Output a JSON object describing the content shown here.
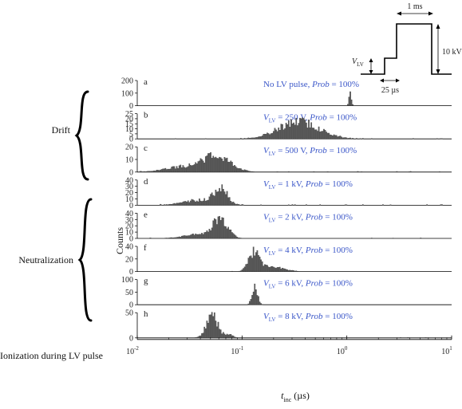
{
  "chart_data": {
    "type": "bar",
    "xlabel_main": "t",
    "xlabel_sub": "inc",
    "xlabel_unit": "(µs)",
    "ylabel": "Counts",
    "x_scale": "log",
    "xlim": [
      0.01,
      10
    ],
    "x_ticks": [
      {
        "value": 0.01,
        "base": "10",
        "exp": "-2"
      },
      {
        "value": 0.1,
        "base": "10",
        "exp": "-1"
      },
      {
        "value": 1,
        "base": "10",
        "exp": "0"
      },
      {
        "value": 10,
        "base": "10",
        "exp": "1"
      }
    ],
    "groups": [
      {
        "label": "Drift",
        "panels": [
          "a",
          "b",
          "c"
        ]
      },
      {
        "label": "Neutralization",
        "panels": [
          "d",
          "e",
          "f",
          "g"
        ]
      },
      {
        "label": "Ionization during LV pulse",
        "panels": [
          "h"
        ]
      }
    ],
    "panels": [
      {
        "letter": "a",
        "ylim": [
          0,
          200
        ],
        "yticks": [
          "0",
          "100",
          "200"
        ],
        "annotation": {
          "prefix": "No LV pulse, ",
          "v": "",
          "sub": "",
          "value": "",
          "prob_label": "Prob",
          "prob_value": " = 100%"
        },
        "peaks": [
          {
            "x": 1.08,
            "width": 0.012,
            "height": 110,
            "n": 60
          }
        ],
        "background": 0.5
      },
      {
        "letter": "b",
        "ylim": [
          0,
          25
        ],
        "yticks": [
          "0",
          "5",
          "10",
          "15",
          "20",
          "25"
        ],
        "annotation": {
          "prefix": "",
          "v": "V",
          "sub": "LV",
          "value": " = 250 V, ",
          "prob_label": "Prob",
          "prob_value": " = 100%"
        },
        "peaks": [
          {
            "x": 0.35,
            "width": 0.19,
            "height": 17,
            "n": 60
          }
        ],
        "background": 0.8
      },
      {
        "letter": "c",
        "ylim": [
          0,
          25
        ],
        "yticks": [
          "0",
          "10",
          "20"
        ],
        "annotation": {
          "prefix": "",
          "v": "V",
          "sub": "LV",
          "value": " = 500 V, ",
          "prob_label": "Prob",
          "prob_value": " = 100%"
        },
        "peaks": [
          {
            "x": 0.058,
            "width": 0.13,
            "height": 15,
            "n": 60
          },
          {
            "x": 0.028,
            "width": 0.18,
            "height": 5,
            "n": 60
          }
        ],
        "background": 1.0
      },
      {
        "letter": "d",
        "ylim": [
          0,
          40
        ],
        "yticks": [
          "0",
          "10",
          "20",
          "30",
          "40"
        ],
        "annotation": {
          "prefix": "",
          "v": "V",
          "sub": "LV",
          "value": " = 1 kV, ",
          "prob_label": "Prob",
          "prob_value": " = 100%"
        },
        "peaks": [
          {
            "x": 0.063,
            "width": 0.06,
            "height": 26,
            "n": 60
          },
          {
            "x": 0.04,
            "width": 0.16,
            "height": 8,
            "n": 60
          }
        ],
        "background": 1.0
      },
      {
        "letter": "e",
        "ylim": [
          0,
          40
        ],
        "yticks": [
          "0",
          "10",
          "20",
          "30",
          "40"
        ],
        "annotation": {
          "prefix": "",
          "v": "V",
          "sub": "LV",
          "value": " = 2 kV, ",
          "prob_label": "Prob",
          "prob_value": " = 100%"
        },
        "peaks": [
          {
            "x": 0.062,
            "width": 0.07,
            "height": 29,
            "n": 60
          },
          {
            "x": 0.04,
            "width": 0.15,
            "height": 6,
            "n": 60
          }
        ],
        "background": 0.8
      },
      {
        "letter": "f",
        "ylim": [
          0,
          40
        ],
        "yticks": [
          "0",
          "20",
          "40"
        ],
        "annotation": {
          "prefix": "",
          "v": "V",
          "sub": "LV",
          "value": " = 4 kV, ",
          "prob_label": "Prob",
          "prob_value": " = 100%"
        },
        "peaks": [
          {
            "x": 0.13,
            "width": 0.05,
            "height": 28,
            "n": 60
          },
          {
            "x": 0.19,
            "width": 0.12,
            "height": 7,
            "n": 60
          }
        ],
        "background": 0.5
      },
      {
        "letter": "g",
        "ylim": [
          0,
          100
        ],
        "yticks": [
          "0",
          "50",
          "100"
        ],
        "annotation": {
          "prefix": "",
          "v": "V",
          "sub": "LV",
          "value": " = 6 kV, ",
          "prob_label": "Prob",
          "prob_value": " = 100%"
        },
        "peaks": [
          {
            "x": 0.133,
            "width": 0.025,
            "height": 78,
            "n": 60
          }
        ],
        "background": 0.3
      },
      {
        "letter": "h",
        "ylim": [
          0,
          50
        ],
        "yticks": [
          "0",
          "50"
        ],
        "annotation": {
          "prefix": "",
          "v": "V",
          "sub": "LV",
          "value": " = 8 kV, ",
          "prob_label": "Prob",
          "prob_value": " = 100%"
        },
        "peaks": [
          {
            "x": 0.052,
            "width": 0.055,
            "height": 42,
            "n": 60
          },
          {
            "x": 0.075,
            "width": 0.04,
            "height": 6,
            "n": 60
          }
        ],
        "background": 0.6
      }
    ],
    "pulse_diagram": {
      "top_label": "1 ms",
      "right_label": "10 kV",
      "left_label_v": "V",
      "left_label_sub": "LV",
      "bottom_label": "25 µs"
    }
  }
}
